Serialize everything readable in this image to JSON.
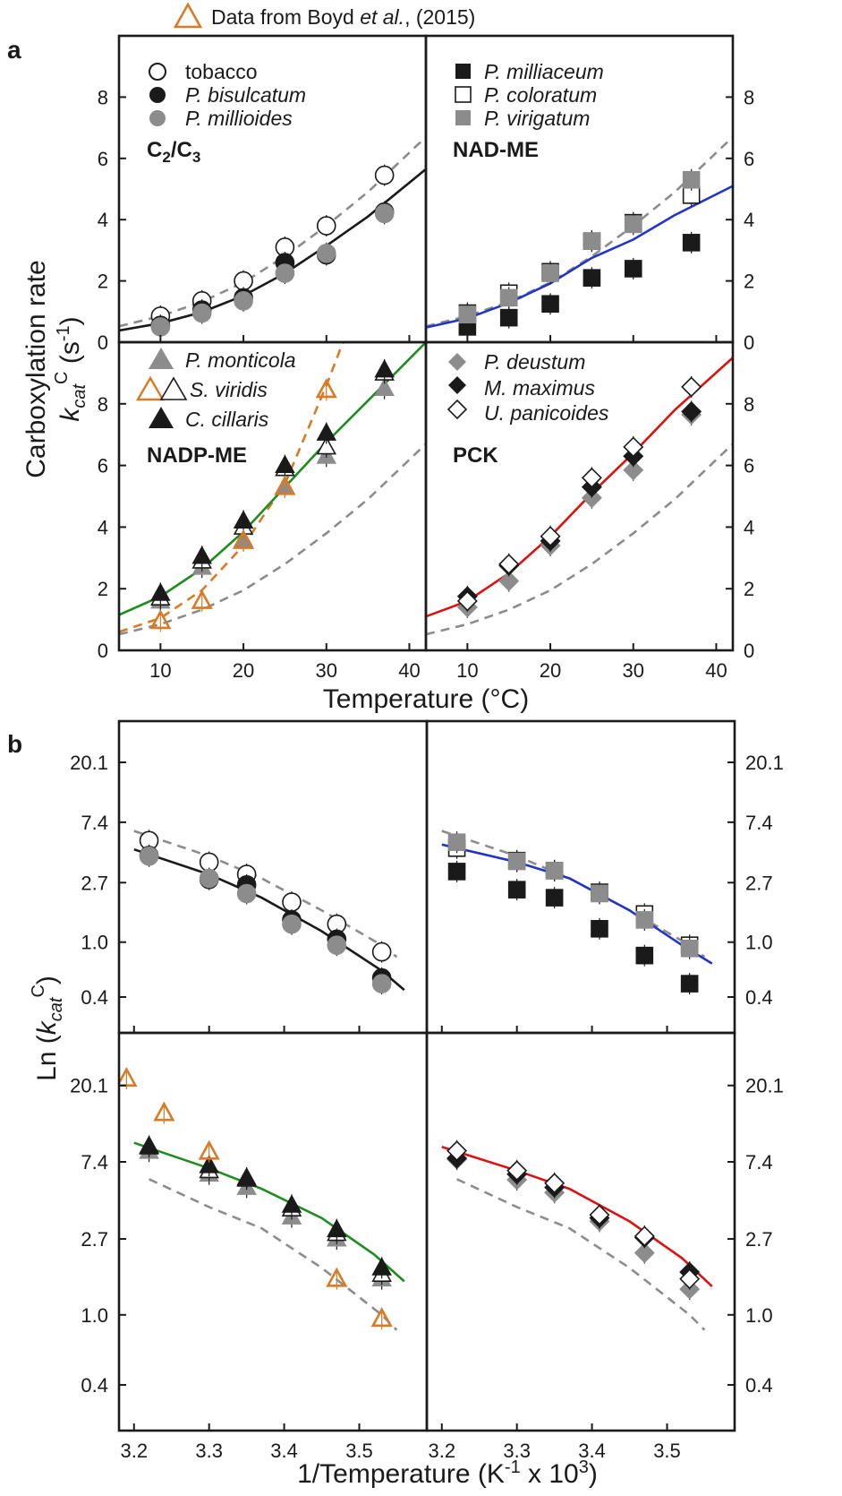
{
  "header_legend": "Data from Boyd et al., (2015)",
  "colors": {
    "ref_dashed": "#8c8c8c",
    "c2c3": "#1a1a1a",
    "nadme": "#2233cc",
    "nadpme": "#1e8c1e",
    "pck": "#dd1111",
    "boyd": "#d97a26",
    "gray_marker": "#8c8c8c"
  },
  "chart_data": [
    {
      "id": "a-c2c3",
      "panel": "a",
      "type": "scatter",
      "label": "C2/C3",
      "xlabel": "Temperature (°C)",
      "ylabel": "Carboxylation rate kcatC (s-1)",
      "xlim": [
        5,
        42
      ],
      "ylim": [
        0,
        10
      ],
      "xticks": [
        10,
        20,
        30,
        40
      ],
      "yticks": [
        0,
        2,
        4,
        6,
        8
      ],
      "legend_position": "top-left",
      "series": [
        {
          "name": "tobacco",
          "marker": "circle-open",
          "x": [
            10,
            15,
            20,
            25,
            30,
            37
          ],
          "y": [
            0.85,
            1.35,
            2.0,
            3.1,
            3.8,
            5.45
          ]
        },
        {
          "name": "P. bisulcatum",
          "marker": "circle-black",
          "x": [
            10,
            15,
            20,
            25,
            30,
            37
          ],
          "y": [
            0.55,
            1.05,
            1.45,
            2.6,
            2.85,
            4.25
          ]
        },
        {
          "name": "P. millioides",
          "marker": "circle-gray",
          "x": [
            10,
            15,
            20,
            25,
            30,
            37
          ],
          "y": [
            0.5,
            0.95,
            1.35,
            2.25,
            2.9,
            4.2
          ]
        }
      ],
      "fit_solid": {
        "color": "#1a1a1a",
        "x": [
          5,
          10,
          15,
          20,
          25,
          30,
          35,
          42
        ],
        "y": [
          0.38,
          0.62,
          0.98,
          1.52,
          2.25,
          3.15,
          4.1,
          5.65
        ]
      },
      "fit_dashed": {
        "x": [
          5,
          10,
          15,
          20,
          25,
          30,
          35,
          42
        ],
        "y": [
          0.52,
          0.85,
          1.32,
          1.95,
          2.8,
          3.8,
          4.9,
          6.7
        ]
      }
    },
    {
      "id": "a-nadme",
      "panel": "a",
      "type": "scatter",
      "label": "NAD-ME",
      "xlim": [
        5,
        42
      ],
      "ylim": [
        0,
        10
      ],
      "xticks": [
        10,
        20,
        30,
        40
      ],
      "yticks": [
        0,
        2,
        4,
        6,
        8
      ],
      "legend_position": "top-left",
      "series": [
        {
          "name": "P. milliaceum",
          "marker": "square-black",
          "x": [
            10,
            15,
            20,
            25,
            30,
            37
          ],
          "y": [
            0.5,
            0.8,
            1.25,
            2.1,
            2.4,
            3.25
          ]
        },
        {
          "name": "P. coloratum",
          "marker": "square-open",
          "x": [
            10,
            15,
            20,
            25,
            30,
            37
          ],
          "y": [
            0.95,
            1.6,
            2.3,
            3.3,
            3.9,
            4.8
          ]
        },
        {
          "name": "P. virigatum",
          "marker": "square-gray",
          "x": [
            10,
            15,
            20,
            25,
            30,
            37
          ],
          "y": [
            0.9,
            1.45,
            2.25,
            3.3,
            3.85,
            5.3
          ]
        }
      ],
      "fit_solid": {
        "color": "#2233cc",
        "x": [
          5,
          10,
          15,
          20,
          25,
          30,
          35,
          42
        ],
        "y": [
          0.48,
          0.78,
          1.28,
          1.92,
          2.75,
          3.35,
          4.15,
          5.1
        ]
      },
      "fit_dashed": {
        "x": [
          5,
          10,
          15,
          20,
          25,
          30,
          35,
          42
        ],
        "y": [
          0.52,
          0.85,
          1.32,
          1.95,
          2.8,
          3.8,
          4.9,
          6.7
        ]
      }
    },
    {
      "id": "a-nadpme",
      "panel": "a",
      "type": "scatter",
      "label": "NADP-ME",
      "xlim": [
        5,
        42
      ],
      "ylim": [
        0,
        10
      ],
      "xticks": [
        10,
        20,
        30,
        40
      ],
      "yticks": [
        0,
        2,
        4,
        6,
        8
      ],
      "legend_position": "top-left",
      "series": [
        {
          "name": "P. monticola",
          "marker": "triangle-gray",
          "x": [
            10,
            15,
            20,
            25,
            30,
            37
          ],
          "y": [
            1.6,
            2.7,
            3.6,
            5.3,
            6.3,
            8.5
          ]
        },
        {
          "name": "S. viridis",
          "marker": "triangle-open",
          "x": [
            10,
            15,
            20,
            25,
            30,
            37
          ],
          "y": [
            1.7,
            2.9,
            4.0,
            5.9,
            6.6,
            9.0
          ]
        },
        {
          "name": "C. cillaris",
          "marker": "triangle-black",
          "x": [
            10,
            15,
            20,
            25,
            30,
            37
          ],
          "y": [
            1.85,
            3.05,
            4.2,
            6.0,
            7.05,
            9.1
          ]
        },
        {
          "name": "Boyd et al. (2015)",
          "marker": "triangle-orange",
          "x": [
            10,
            15,
            20,
            25,
            30
          ],
          "y": [
            0.95,
            1.6,
            3.55,
            5.3,
            8.45
          ]
        }
      ],
      "fit_solid": {
        "color": "#1e8c1e",
        "x": [
          5,
          10,
          15,
          20,
          25,
          30,
          35,
          42
        ],
        "y": [
          1.15,
          1.75,
          2.65,
          3.85,
          5.3,
          6.75,
          8.1,
          10.0
        ]
      },
      "fit_orange_dashed": {
        "x": [
          5,
          10,
          15,
          20,
          25,
          30,
          32
        ],
        "y": [
          0.6,
          1.05,
          1.95,
          3.4,
          5.4,
          8.6,
          10.0
        ]
      },
      "fit_dashed": {
        "x": [
          5,
          10,
          15,
          20,
          25,
          30,
          35,
          42
        ],
        "y": [
          0.52,
          0.85,
          1.32,
          1.95,
          2.8,
          3.8,
          4.9,
          6.7
        ]
      }
    },
    {
      "id": "a-pck",
      "panel": "a",
      "type": "scatter",
      "label": "PCK",
      "xlim": [
        5,
        42
      ],
      "ylim": [
        0,
        10
      ],
      "xticks": [
        10,
        20,
        30,
        40
      ],
      "yticks": [
        0,
        2,
        4,
        6,
        8
      ],
      "legend_position": "top-left",
      "series": [
        {
          "name": "P. deustum",
          "marker": "diamond-gray",
          "x": [
            10,
            15,
            20,
            25,
            30,
            37
          ],
          "y": [
            1.4,
            2.25,
            3.4,
            4.95,
            5.85,
            7.65
          ]
        },
        {
          "name": "M. maximus",
          "marker": "diamond-black",
          "x": [
            10,
            15,
            20,
            25,
            30,
            37
          ],
          "y": [
            1.75,
            2.75,
            3.55,
            5.3,
            6.3,
            7.75
          ]
        },
        {
          "name": "U. panicoides",
          "marker": "diamond-open",
          "x": [
            10,
            15,
            20,
            25,
            30,
            37
          ],
          "y": [
            1.6,
            2.8,
            3.7,
            5.6,
            6.6,
            8.55
          ]
        }
      ],
      "fit_solid": {
        "color": "#dd1111",
        "x": [
          5,
          10,
          15,
          20,
          25,
          30,
          35,
          42
        ],
        "y": [
          1.1,
          1.6,
          2.5,
          3.7,
          5.1,
          6.4,
          7.8,
          9.5
        ]
      },
      "fit_dashed": {
        "x": [
          5,
          10,
          15,
          20,
          25,
          30,
          35,
          42
        ],
        "y": [
          0.52,
          0.85,
          1.32,
          1.95,
          2.8,
          3.8,
          4.9,
          6.7
        ]
      }
    },
    {
      "id": "b-c2c3",
      "panel": "b",
      "type": "scatter",
      "xlabel": "1/Temperature (K-1 x 103)",
      "ylabel": "Ln (kcatC)",
      "xlim": [
        3.18,
        3.59
      ],
      "ylim_log": [
        0.22,
        40
      ],
      "xticks": [
        3.2,
        3.3,
        3.4,
        3.5
      ],
      "yticks": [
        0.4,
        1.0,
        2.7,
        7.4,
        20.1
      ],
      "series": [
        {
          "name": "tobacco",
          "marker": "circle-open",
          "x": [
            3.22,
            3.3,
            3.35,
            3.41,
            3.47,
            3.53
          ],
          "y": [
            5.45,
            3.8,
            3.1,
            1.95,
            1.35,
            0.85
          ]
        },
        {
          "name": "P. bisulcatum",
          "marker": "circle-black",
          "x": [
            3.22,
            3.3,
            3.35,
            3.41,
            3.47,
            3.53
          ],
          "y": [
            4.25,
            2.85,
            2.6,
            1.45,
            1.05,
            0.55
          ]
        },
        {
          "name": "P. millioides",
          "marker": "circle-gray",
          "x": [
            3.22,
            3.3,
            3.35,
            3.41,
            3.47,
            3.53
          ],
          "y": [
            4.2,
            2.9,
            2.25,
            1.35,
            0.95,
            0.5
          ]
        }
      ],
      "fit_solid": {
        "color": "#1a1a1a",
        "x": [
          3.2,
          3.3,
          3.37,
          3.45,
          3.53,
          3.56
        ],
        "y": [
          4.7,
          3.1,
          2.1,
          1.2,
          0.62,
          0.45
        ]
      },
      "fit_dashed": {
        "x": [
          3.2,
          3.3,
          3.37,
          3.45,
          3.53,
          3.55
        ],
        "y": [
          6.4,
          4.2,
          2.9,
          1.7,
          0.95,
          0.78
        ]
      }
    },
    {
      "id": "b-nadme",
      "panel": "b",
      "type": "scatter",
      "xlim": [
        3.18,
        3.59
      ],
      "ylim_log": [
        0.22,
        40
      ],
      "xticks": [
        3.2,
        3.3,
        3.4,
        3.5
      ],
      "yticks": [
        0.4,
        1.0,
        2.7,
        7.4,
        20.1
      ],
      "series": [
        {
          "name": "P. milliaceum",
          "marker": "square-black",
          "x": [
            3.22,
            3.3,
            3.35,
            3.41,
            3.47,
            3.53
          ],
          "y": [
            3.25,
            2.4,
            2.1,
            1.25,
            0.8,
            0.5
          ]
        },
        {
          "name": "P. coloratum",
          "marker": "square-open",
          "x": [
            3.22,
            3.3,
            3.35,
            3.41,
            3.47,
            3.53
          ],
          "y": [
            4.8,
            3.9,
            3.3,
            2.3,
            1.6,
            0.95
          ]
        },
        {
          "name": "P. virigatum",
          "marker": "square-gray",
          "x": [
            3.22,
            3.3,
            3.35,
            3.41,
            3.47,
            3.53
          ],
          "y": [
            5.3,
            3.85,
            3.3,
            2.25,
            1.45,
            0.9
          ]
        }
      ],
      "fit_solid": {
        "color": "#2233cc",
        "x": [
          3.2,
          3.3,
          3.37,
          3.45,
          3.52,
          3.56
        ],
        "y": [
          5.1,
          3.8,
          2.9,
          1.7,
          0.95,
          0.7
        ]
      },
      "fit_dashed": {
        "x": [
          3.2,
          3.3,
          3.37,
          3.45,
          3.53,
          3.55
        ],
        "y": [
          6.4,
          4.2,
          2.9,
          1.7,
          0.95,
          0.78
        ]
      }
    },
    {
      "id": "b-nadpme",
      "panel": "b",
      "type": "scatter",
      "xlim": [
        3.18,
        3.59
      ],
      "ylim_log": [
        0.22,
        40
      ],
      "xticks": [
        3.2,
        3.3,
        3.4,
        3.5
      ],
      "yticks": [
        0.4,
        1.0,
        2.7,
        7.4,
        20.1
      ],
      "series": [
        {
          "name": "P. monticola",
          "marker": "triangle-gray",
          "x": [
            3.22,
            3.3,
            3.35,
            3.41,
            3.47,
            3.53
          ],
          "y": [
            8.5,
            6.3,
            5.3,
            3.6,
            2.7,
            1.6
          ]
        },
        {
          "name": "S. viridis",
          "marker": "triangle-open",
          "x": [
            3.22,
            3.3,
            3.35,
            3.41,
            3.47,
            3.53
          ],
          "y": [
            9.0,
            6.6,
            5.9,
            4.0,
            2.9,
            1.7
          ]
        },
        {
          "name": "C. cillaris",
          "marker": "triangle-black",
          "x": [
            3.22,
            3.3,
            3.35,
            3.41,
            3.47,
            3.53
          ],
          "y": [
            9.1,
            7.05,
            6.0,
            4.2,
            3.05,
            1.85
          ]
        },
        {
          "name": "Boyd et al. (2015)",
          "marker": "triangle-orange",
          "x": [
            3.19,
            3.24,
            3.3,
            3.47,
            3.53
          ],
          "y": [
            22,
            14,
            8.45,
            1.6,
            0.95
          ]
        }
      ],
      "fit_solid": {
        "color": "#1e8c1e",
        "x": [
          3.2,
          3.3,
          3.37,
          3.45,
          3.52,
          3.56
        ],
        "y": [
          9.5,
          6.8,
          5.2,
          3.55,
          2.2,
          1.55
        ]
      },
      "fit_dashed": {
        "x": [
          3.22,
          3.3,
          3.37,
          3.45,
          3.53,
          3.55
        ],
        "y": [
          5.9,
          4.1,
          3.1,
          1.85,
          1.0,
          0.82
        ]
      }
    },
    {
      "id": "b-pck",
      "panel": "b",
      "type": "scatter",
      "xlim": [
        3.18,
        3.59
      ],
      "ylim_log": [
        0.22,
        40
      ],
      "xticks": [
        3.2,
        3.3,
        3.4,
        3.5
      ],
      "yticks": [
        0.4,
        1.0,
        2.7,
        7.4,
        20.1
      ],
      "series": [
        {
          "name": "P. deustum",
          "marker": "diamond-gray",
          "x": [
            3.22,
            3.3,
            3.35,
            3.41,
            3.47,
            3.53
          ],
          "y": [
            7.65,
            5.85,
            4.95,
            3.4,
            2.25,
            1.4
          ]
        },
        {
          "name": "M. maximus",
          "marker": "diamond-black",
          "x": [
            3.22,
            3.3,
            3.35,
            3.41,
            3.47,
            3.53
          ],
          "y": [
            7.75,
            6.3,
            5.3,
            3.55,
            2.75,
            1.75
          ]
        },
        {
          "name": "U. panicoides",
          "marker": "diamond-open",
          "x": [
            3.22,
            3.3,
            3.35,
            3.41,
            3.47,
            3.53
          ],
          "y": [
            8.55,
            6.6,
            5.6,
            3.7,
            2.8,
            1.6
          ]
        }
      ],
      "fit_solid": {
        "color": "#dd1111",
        "x": [
          3.2,
          3.3,
          3.37,
          3.45,
          3.52,
          3.56
        ],
        "y": [
          9.0,
          6.6,
          5.2,
          3.4,
          2.1,
          1.45
        ]
      },
      "fit_dashed": {
        "x": [
          3.22,
          3.3,
          3.37,
          3.45,
          3.53,
          3.55
        ],
        "y": [
          5.9,
          4.1,
          3.1,
          1.85,
          1.0,
          0.82
        ]
      }
    }
  ],
  "panel_letters": {
    "a": "a",
    "b": "b"
  },
  "a_xlabel": "Temperature (°C)",
  "b_xlabel": "1/Temperature (K-1 x 103)",
  "a_ylabel": "Carboxylation rate kcatC (s-1)",
  "b_ylabel": "Ln (kcatC)"
}
